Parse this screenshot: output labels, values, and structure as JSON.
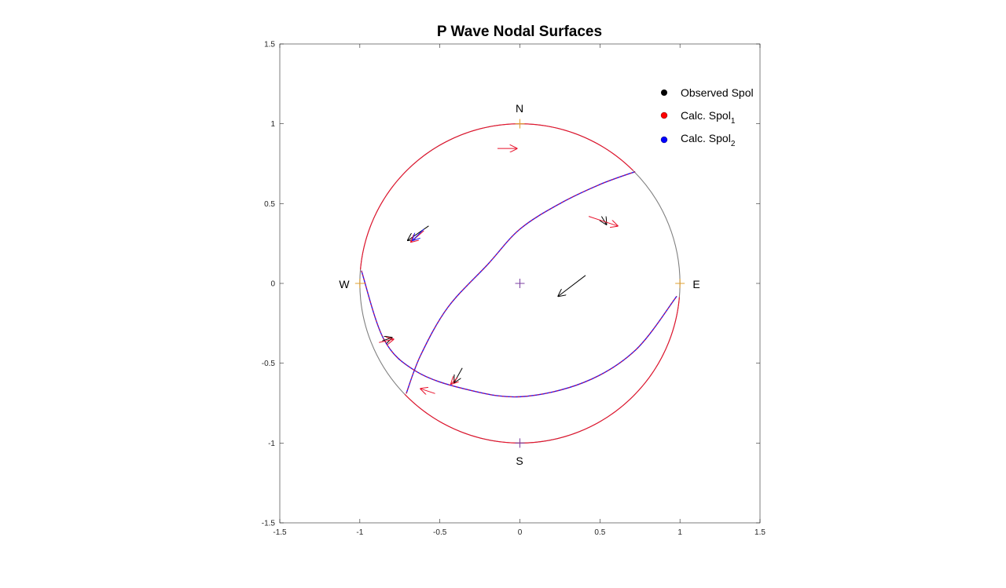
{
  "chart_data": {
    "type": "scatter",
    "title": "P Wave Nodal Surfaces",
    "xlabel": "",
    "ylabel": "",
    "xlim": [
      -1.5,
      1.5
    ],
    "ylim": [
      -1.5,
      1.5
    ],
    "xticks": [
      -1.5,
      -1,
      -0.5,
      0,
      0.5,
      1,
      1.5
    ],
    "yticks": [
      -1.5,
      -1,
      -0.5,
      0,
      0.5,
      1,
      1.5
    ],
    "xtick_labels": [
      "-1.5",
      "-1",
      "-0.5",
      "0",
      "0.5",
      "1",
      "1.5"
    ],
    "ytick_labels": [
      "-1.5",
      "-1",
      "-0.5",
      "0",
      "0.5",
      "1",
      "1.5"
    ],
    "grid": false,
    "legend_position": "top-right",
    "cardinal_labels": {
      "north": "N",
      "south": "S",
      "east": "E",
      "west": "W"
    },
    "legend": [
      {
        "label": "Observed Spol",
        "subscript": "",
        "color": "#000000"
      },
      {
        "label": "Calc. Spol",
        "subscript": "1",
        "color": "#ff0000"
      },
      {
        "label": "Calc. Spol",
        "subscript": "2",
        "color": "#0000ff"
      }
    ],
    "colors": {
      "observed": "#000000",
      "calc1": "#e8102a",
      "calc2": "#1a1aff",
      "focal_sphere": "#808080",
      "nodal_red": "#e8102a",
      "cross_orange": "#e0a030",
      "cross_purple": "#7b3fa0"
    },
    "nodal_planes": [
      {
        "name": "plane-1",
        "points": [
          [
            -0.99,
            0.08
          ],
          [
            -0.85,
            -0.35
          ],
          [
            -0.65,
            -0.55
          ],
          [
            -0.35,
            -0.66
          ],
          [
            0,
            -0.71
          ],
          [
            0.4,
            -0.62
          ],
          [
            0.72,
            -0.42
          ],
          [
            0.98,
            -0.08
          ]
        ]
      },
      {
        "name": "plane-2",
        "points": [
          [
            -0.71,
            -0.69
          ],
          [
            -0.62,
            -0.45
          ],
          [
            -0.45,
            -0.15
          ],
          [
            -0.2,
            0.12
          ],
          [
            0,
            0.34
          ],
          [
            0.25,
            0.5
          ],
          [
            0.5,
            0.62
          ],
          [
            0.72,
            0.7
          ]
        ]
      }
    ],
    "observed_spol": [
      {
        "x": -0.57,
        "y": 0.36,
        "dx": -0.13,
        "dy": -0.09
      },
      {
        "x": 0.41,
        "y": 0.05,
        "dx": -0.17,
        "dy": -0.13
      },
      {
        "x": 0.51,
        "y": 0.42,
        "dx": 0.03,
        "dy": -0.05
      },
      {
        "x": -0.36,
        "y": -0.53,
        "dx": -0.05,
        "dy": -0.09
      },
      {
        "x": -0.86,
        "y": -0.36,
        "dx": 0.06,
        "dy": 0.02
      }
    ],
    "calc_spol_1": [
      {
        "x": -0.14,
        "y": 0.845,
        "dx": 0.12,
        "dy": 0.0
      },
      {
        "x": 0.43,
        "y": 0.42,
        "dx": 0.18,
        "dy": -0.06
      },
      {
        "x": -0.6,
        "y": 0.33,
        "dx": -0.08,
        "dy": -0.07
      },
      {
        "x": -0.88,
        "y": -0.37,
        "dx": 0.09,
        "dy": 0.02
      },
      {
        "x": -0.39,
        "y": -0.59,
        "dx": -0.04,
        "dy": -0.04
      },
      {
        "x": -0.53,
        "y": -0.69,
        "dx": -0.09,
        "dy": 0.03
      }
    ],
    "calc_spol_2": [
      {
        "x": -0.6,
        "y": 0.34,
        "dx": -0.07,
        "dy": -0.07
      }
    ]
  }
}
